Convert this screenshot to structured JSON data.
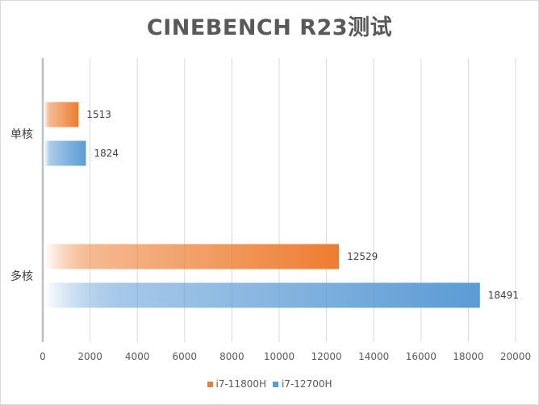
{
  "chart_data": {
    "type": "bar",
    "orientation": "horizontal",
    "title": "CINEBENCH R23测试",
    "categories": [
      "单核",
      "多核"
    ],
    "series": [
      {
        "name": "i7-11800H",
        "values": [
          1513,
          12529
        ],
        "color": "#ed7d31"
      },
      {
        "name": "i7-12700H",
        "values": [
          1824,
          18491
        ],
        "color": "#5b9bd5"
      }
    ],
    "xlim": [
      0,
      20000
    ],
    "xticks": [
      0,
      2000,
      4000,
      6000,
      8000,
      10000,
      12000,
      14000,
      16000,
      18000,
      20000
    ],
    "grid": true,
    "legend": "bottom",
    "bar_style": "gradient fill fading to white toward axis"
  }
}
